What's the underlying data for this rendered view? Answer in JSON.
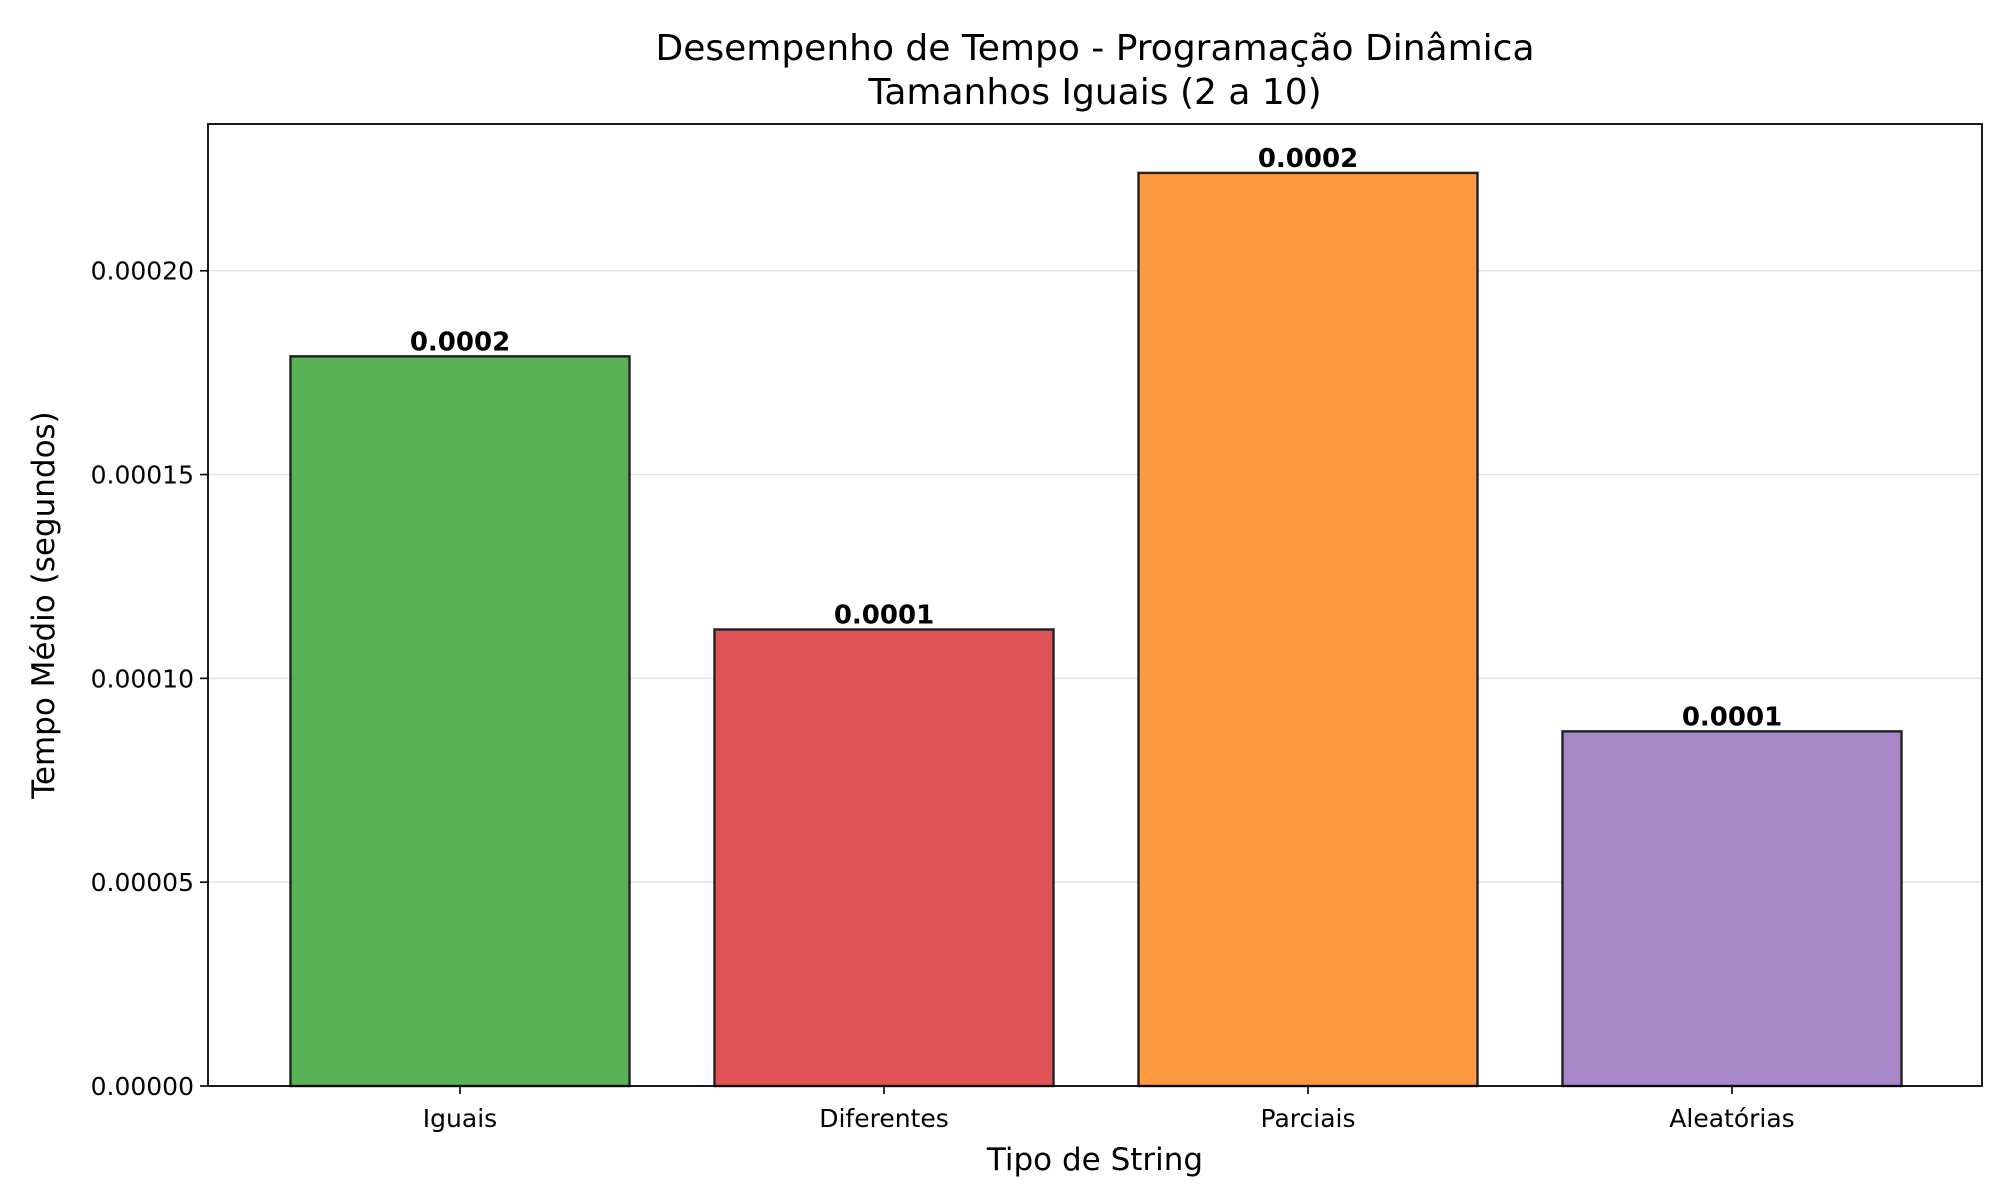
{
  "chart_data": {
    "type": "bar",
    "title": "Desempenho de Tempo - Programação Dinâmica",
    "subtitle": "Tamanhos Iguais (2 a 10)",
    "xlabel": "Tipo de String",
    "ylabel": "Tempo Médio (segundos)",
    "categories": [
      "Iguais",
      "Diferentes",
      "Parciais",
      "Aleatórias"
    ],
    "values": [
      0.000179,
      0.000112,
      0.000224,
      8.7e-05
    ],
    "value_labels": [
      "0.0002",
      "0.0001",
      "0.0002",
      "0.0001"
    ],
    "colors": [
      "#59b356",
      "#df5357",
      "#fe9941",
      "#a888c8"
    ],
    "ylim": [
      0,
      0.000236
    ],
    "yticks": [
      0,
      5e-05,
      0.0001,
      0.00015,
      0.0002
    ],
    "ytick_labels": [
      "0.00000",
      "0.00005",
      "0.00010",
      "0.00015",
      "0.00020"
    ],
    "grid": "horizontal",
    "legend": "none"
  }
}
